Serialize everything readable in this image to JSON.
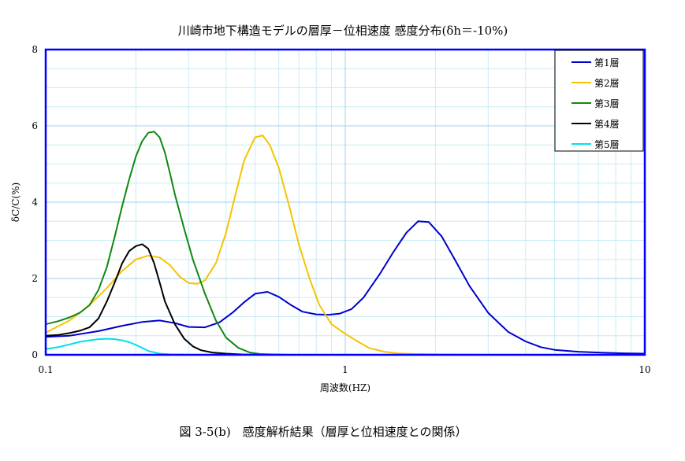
{
  "chart_data": {
    "type": "line",
    "title": "川崎市地下構造モデルの層厚－位相速度 感度分布(δh＝-10%)",
    "xlabel": "周波数(HZ)",
    "ylabel": "δC/C(%)",
    "x_scale": "log",
    "xlim": [
      0.1,
      10
    ],
    "ylim": [
      0,
      8
    ],
    "x_ticks": [
      0.1,
      1,
      10
    ],
    "x_tick_labels": [
      "0.1",
      "1",
      "10"
    ],
    "y_ticks": [
      0,
      2,
      4,
      6,
      8
    ],
    "y_tick_labels": [
      "0",
      "2",
      "4",
      "6",
      "8"
    ],
    "grid": true,
    "legend_position": "top-right",
    "series": [
      {
        "name": "第1層",
        "color": "#0000cc",
        "x": [
          0.1,
          0.12,
          0.15,
          0.18,
          0.21,
          0.24,
          0.27,
          0.3,
          0.34,
          0.38,
          0.42,
          0.46,
          0.5,
          0.55,
          0.6,
          0.66,
          0.72,
          0.8,
          0.88,
          0.96,
          1.05,
          1.15,
          1.3,
          1.45,
          1.6,
          1.75,
          1.9,
          2.1,
          2.3,
          2.6,
          3.0,
          3.5,
          4.0,
          4.5,
          5.0,
          6.0,
          7.0,
          8.5,
          10.0
        ],
        "y": [
          0.47,
          0.5,
          0.62,
          0.76,
          0.86,
          0.9,
          0.83,
          0.73,
          0.72,
          0.85,
          1.1,
          1.38,
          1.6,
          1.65,
          1.52,
          1.3,
          1.13,
          1.06,
          1.05,
          1.08,
          1.2,
          1.5,
          2.1,
          2.7,
          3.2,
          3.5,
          3.48,
          3.1,
          2.55,
          1.8,
          1.1,
          0.6,
          0.35,
          0.2,
          0.13,
          0.08,
          0.06,
          0.04,
          0.03
        ]
      },
      {
        "name": "第2層",
        "color": "#f5c400",
        "x": [
          0.1,
          0.12,
          0.14,
          0.16,
          0.18,
          0.2,
          0.22,
          0.24,
          0.26,
          0.28,
          0.3,
          0.32,
          0.34,
          0.37,
          0.4,
          0.43,
          0.46,
          0.5,
          0.53,
          0.56,
          0.6,
          0.65,
          0.7,
          0.76,
          0.82,
          0.9,
          1.0,
          1.1,
          1.2,
          1.35,
          1.5,
          1.7,
          2.0,
          3.0,
          5.0,
          10.0
        ],
        "y": [
          0.58,
          0.9,
          1.3,
          1.75,
          2.2,
          2.5,
          2.6,
          2.55,
          2.35,
          2.05,
          1.88,
          1.86,
          1.95,
          2.4,
          3.2,
          4.2,
          5.1,
          5.7,
          5.75,
          5.5,
          4.9,
          3.9,
          2.9,
          2.0,
          1.3,
          0.8,
          0.55,
          0.35,
          0.18,
          0.08,
          0.04,
          0.02,
          0.01,
          0.0,
          0.0,
          0.0
        ]
      },
      {
        "name": "第3層",
        "color": "#118811",
        "x": [
          0.1,
          0.11,
          0.12,
          0.13,
          0.14,
          0.15,
          0.16,
          0.17,
          0.18,
          0.19,
          0.2,
          0.21,
          0.22,
          0.23,
          0.24,
          0.25,
          0.26,
          0.27,
          0.29,
          0.31,
          0.34,
          0.37,
          0.4,
          0.44,
          0.48,
          0.52,
          0.57,
          0.65,
          0.8,
          1.0,
          2.0,
          10.0
        ],
        "y": [
          0.8,
          0.88,
          0.98,
          1.1,
          1.3,
          1.7,
          2.3,
          3.1,
          3.9,
          4.6,
          5.2,
          5.6,
          5.82,
          5.85,
          5.7,
          5.3,
          4.75,
          4.2,
          3.3,
          2.5,
          1.6,
          0.9,
          0.45,
          0.18,
          0.06,
          0.02,
          0.01,
          0.0,
          0.0,
          0.0,
          0.0,
          0.0
        ]
      },
      {
        "name": "第4層",
        "color": "#000000",
        "x": [
          0.1,
          0.11,
          0.12,
          0.13,
          0.14,
          0.15,
          0.16,
          0.17,
          0.18,
          0.19,
          0.2,
          0.21,
          0.22,
          0.23,
          0.24,
          0.25,
          0.27,
          0.29,
          0.31,
          0.33,
          0.36,
          0.4,
          0.45,
          0.5,
          0.6,
          1.0,
          10.0
        ],
        "y": [
          0.5,
          0.52,
          0.57,
          0.63,
          0.72,
          0.95,
          1.4,
          1.9,
          2.4,
          2.72,
          2.85,
          2.9,
          2.78,
          2.4,
          1.9,
          1.4,
          0.8,
          0.42,
          0.22,
          0.12,
          0.06,
          0.03,
          0.01,
          0.0,
          0.0,
          0.0,
          0.0
        ]
      },
      {
        "name": "第5層",
        "color": "#00e0ee",
        "x": [
          0.1,
          0.11,
          0.12,
          0.13,
          0.14,
          0.15,
          0.16,
          0.17,
          0.18,
          0.19,
          0.2,
          0.21,
          0.22,
          0.24,
          0.26,
          0.3,
          0.4,
          1.0,
          10.0
        ],
        "y": [
          0.15,
          0.2,
          0.27,
          0.34,
          0.38,
          0.41,
          0.42,
          0.41,
          0.38,
          0.33,
          0.26,
          0.18,
          0.1,
          0.03,
          0.01,
          0.0,
          0.0,
          0.0,
          0.0
        ]
      }
    ]
  },
  "caption": "図 3-5(b)　感度解析結果（層厚と位相速度との関係）"
}
